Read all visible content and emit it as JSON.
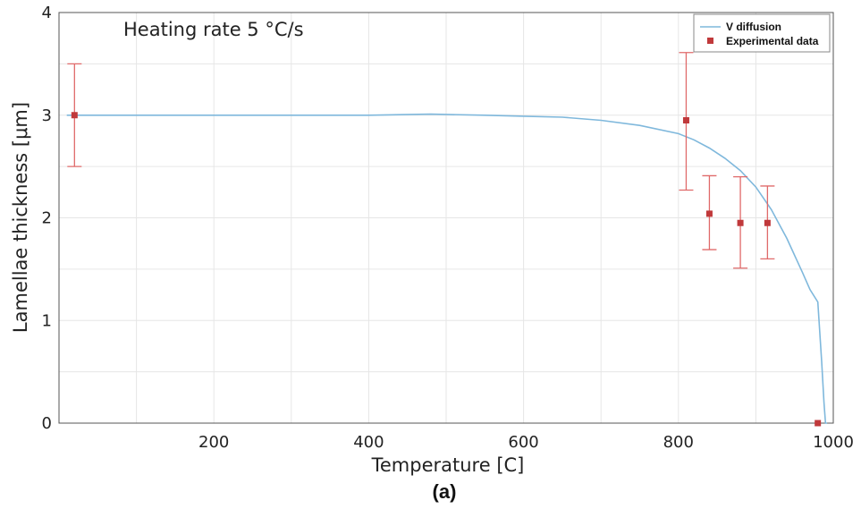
{
  "chart_data": {
    "type": "line",
    "xlabel": "Temperature  [C]",
    "ylabel": "Lamellae thickness [μm]",
    "xlim": [
      0,
      1000
    ],
    "ylim": [
      0,
      4
    ],
    "xticks": [
      200,
      400,
      600,
      800,
      1000
    ],
    "yticks": [
      0,
      1,
      2,
      3,
      4
    ],
    "grid": true,
    "legend_position": "top-right",
    "annotation": "Heating rate 5 °C/s",
    "caption": "(a)",
    "series": [
      {
        "name": "V diffusion",
        "kind": "line",
        "color": "#7fb8dc",
        "x": [
          10,
          100,
          200,
          300,
          400,
          480,
          550,
          600,
          650,
          700,
          750,
          800,
          820,
          840,
          860,
          880,
          900,
          920,
          940,
          960,
          970,
          980,
          985,
          988,
          990,
          992
        ],
        "y": [
          3.0,
          3.0,
          3.0,
          3.0,
          3.0,
          3.01,
          3.0,
          2.99,
          2.98,
          2.95,
          2.9,
          2.82,
          2.76,
          2.68,
          2.58,
          2.46,
          2.3,
          2.08,
          1.8,
          1.47,
          1.3,
          1.18,
          0.6,
          0.2,
          0.0,
          0.0
        ]
      },
      {
        "name": "Experimental data",
        "kind": "errorbar",
        "color": "#c0393b",
        "errcolor": "#e06a6a",
        "x": [
          20,
          810,
          840,
          880,
          915,
          980
        ],
        "y": [
          3.0,
          2.95,
          2.04,
          1.95,
          1.95,
          0.0
        ],
        "lower": [
          2.5,
          2.27,
          1.69,
          1.51,
          1.6,
          0.0
        ],
        "upper": [
          3.5,
          3.61,
          2.41,
          2.4,
          2.31,
          0.0
        ]
      }
    ]
  }
}
